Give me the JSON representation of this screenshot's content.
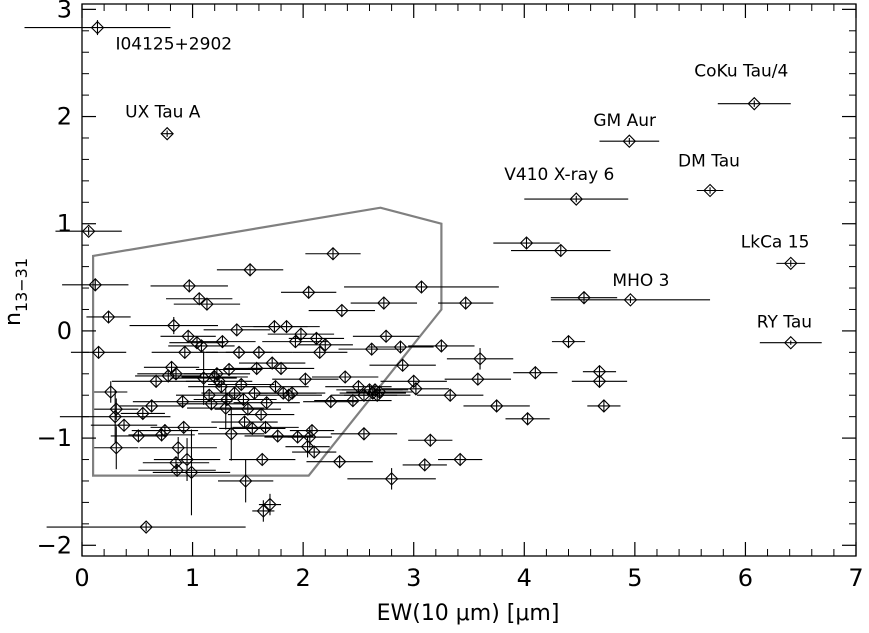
{
  "chart_data": {
    "type": "scatter",
    "title": "",
    "xlabel": "EW(10 μm) [μm]",
    "ylabel_main": "n",
    "ylabel_sub": "13−31",
    "xlim": [
      0,
      7
    ],
    "ylim": [
      -2.1,
      3.05
    ],
    "x_ticks": [
      0,
      1,
      2,
      3,
      4,
      5,
      6,
      7
    ],
    "x_tick_labels": [
      "0",
      "1",
      "2",
      "3",
      "4",
      "5",
      "6",
      "7"
    ],
    "y_ticks": [
      -2,
      -1,
      0,
      1,
      2,
      3
    ],
    "y_tick_labels": [
      "−2",
      "−1",
      "0",
      "1",
      "2",
      "3"
    ],
    "series": [
      {
        "name": "labeled",
        "points": [
          {
            "label": "I04125+2902",
            "x": 0.14,
            "y": 2.83,
            "xerr": 0.66,
            "yerr": 0.07
          },
          {
            "label": "UX Tau A",
            "x": 0.77,
            "y": 1.84,
            "xerr": 0.05,
            "yerr": 0.03
          },
          {
            "label": "CoKu Tau/4",
            "x": 6.08,
            "y": 2.12,
            "xerr": 0.33,
            "yerr": 0.03
          },
          {
            "label": "GM Aur",
            "x": 4.95,
            "y": 1.77,
            "xerr": 0.27,
            "yerr": 0.03
          },
          {
            "label": "V410 X-ray 6",
            "x": 4.47,
            "y": 1.23,
            "xerr": 0.47,
            "yerr": 0.03
          },
          {
            "label": "DM Tau",
            "x": 5.68,
            "y": 1.31,
            "xerr": 0.12,
            "yerr": 0.03
          },
          {
            "label": "LkCa 15",
            "x": 6.41,
            "y": 0.63,
            "xerr": 0.13,
            "yerr": 0.03
          },
          {
            "label": "MHO 3",
            "x": 4.96,
            "y": 0.29,
            "xerr": 0.72,
            "yerr": 0.03
          },
          {
            "label": "RY Tau",
            "x": 6.41,
            "y": -0.11,
            "xerr": 0.28,
            "yerr": 0.02
          }
        ]
      },
      {
        "name": "unlabeled",
        "points": [
          {
            "x": 0.06,
            "y": 0.93,
            "xerr": 0.3,
            "yerr": 0.04
          },
          {
            "x": 0.12,
            "y": 0.43,
            "xerr": 0.3,
            "yerr": 0.05
          },
          {
            "x": 0.24,
            "y": 0.13,
            "xerr": 0.2,
            "yerr": 0.05
          },
          {
            "x": 0.15,
            "y": -0.2,
            "xerr": 0.25,
            "yerr": 0.05
          },
          {
            "x": 0.26,
            "y": -0.57,
            "xerr": 0.15,
            "yerr": 0.1
          },
          {
            "x": 0.31,
            "y": -0.73,
            "xerr": 0.2,
            "yerr": 0.1
          },
          {
            "x": 0.3,
            "y": -0.8,
            "xerr": 0.5,
            "yerr": 0.25
          },
          {
            "x": 0.31,
            "y": -1.09,
            "xerr": 0.2,
            "yerr": 0.2
          },
          {
            "x": 0.58,
            "y": -1.83,
            "xerr": 0.9,
            "yerr": 0.04
          },
          {
            "x": 0.38,
            "y": -0.88,
            "xerr": 0.3,
            "yerr": 0.05
          },
          {
            "x": 0.51,
            "y": -0.98,
            "xerr": 0.25,
            "yerr": 0.05
          },
          {
            "x": 0.55,
            "y": -0.77,
            "xerr": 0.2,
            "yerr": 0.05
          },
          {
            "x": 0.63,
            "y": -0.7,
            "xerr": 0.3,
            "yerr": 0.05
          },
          {
            "x": 0.67,
            "y": -0.47,
            "xerr": 0.4,
            "yerr": 0.05
          },
          {
            "x": 0.72,
            "y": -0.97,
            "xerr": 0.3,
            "yerr": 0.06
          },
          {
            "x": 0.75,
            "y": -0.93,
            "xerr": 0.3,
            "yerr": 0.06
          },
          {
            "x": 0.78,
            "y": -0.42,
            "xerr": 0.3,
            "yerr": 0.05
          },
          {
            "x": 0.81,
            "y": -0.34,
            "xerr": 0.25,
            "yerr": 0.05
          },
          {
            "x": 0.83,
            "y": 0.05,
            "xerr": 0.4,
            "yerr": 0.08
          },
          {
            "x": 0.85,
            "y": -0.4,
            "xerr": 0.35,
            "yerr": 0.05
          },
          {
            "x": 0.87,
            "y": -1.09,
            "xerr": 0.35,
            "yerr": 0.1
          },
          {
            "x": 0.85,
            "y": -1.23,
            "xerr": 0.3,
            "yerr": 0.05
          },
          {
            "x": 0.86,
            "y": -1.3,
            "xerr": 0.35,
            "yerr": 0.05
          },
          {
            "x": 0.96,
            "y": -0.05,
            "xerr": 0.25,
            "yerr": 0.05
          },
          {
            "x": 0.93,
            "y": -0.2,
            "xerr": 0.3,
            "yerr": 0.05
          },
          {
            "x": 0.97,
            "y": 0.42,
            "xerr": 0.35,
            "yerr": 0.06
          },
          {
            "x": 0.91,
            "y": -0.66,
            "xerr": 0.45,
            "yerr": 0.05
          },
          {
            "x": 0.92,
            "y": -0.9,
            "xerr": 0.3,
            "yerr": 0.05
          },
          {
            "x": 0.95,
            "y": -1.2,
            "xerr": 0.3,
            "yerr": 0.2
          },
          {
            "x": 0.99,
            "y": -1.32,
            "xerr": 0.35,
            "yerr": 0.4
          },
          {
            "x": 1.04,
            "y": -0.11,
            "xerr": 0.25,
            "yerr": 0.05
          },
          {
            "x": 1.06,
            "y": 0.3,
            "xerr": 0.3,
            "yerr": 0.05
          },
          {
            "x": 1.08,
            "y": -0.14,
            "xerr": 0.3,
            "yerr": 0.05
          },
          {
            "x": 1.1,
            "y": -0.44,
            "xerr": 0.3,
            "yerr": 0.25
          },
          {
            "x": 1.13,
            "y": 0.25,
            "xerr": 0.3,
            "yerr": 0.05
          },
          {
            "x": 1.15,
            "y": -0.6,
            "xerr": 0.3,
            "yerr": 0.05
          },
          {
            "x": 1.17,
            "y": -0.68,
            "xerr": 0.3,
            "yerr": 0.05
          },
          {
            "x": 1.2,
            "y": -0.43,
            "xerr": 0.3,
            "yerr": 0.05
          },
          {
            "x": 1.22,
            "y": -0.4,
            "xerr": 0.3,
            "yerr": 0.05
          },
          {
            "x": 1.24,
            "y": -0.47,
            "xerr": 0.3,
            "yerr": 0.05
          },
          {
            "x": 1.26,
            "y": -0.52,
            "xerr": 0.3,
            "yerr": 0.05
          },
          {
            "x": 1.27,
            "y": -0.1,
            "xerr": 0.3,
            "yerr": 0.05
          },
          {
            "x": 1.3,
            "y": -0.72,
            "xerr": 0.35,
            "yerr": 0.2
          },
          {
            "x": 1.31,
            "y": -0.64,
            "xerr": 0.3,
            "yerr": 0.05
          },
          {
            "x": 1.33,
            "y": -0.36,
            "xerr": 0.3,
            "yerr": 0.05
          },
          {
            "x": 1.35,
            "y": -0.96,
            "xerr": 0.3,
            "yerr": 0.25
          },
          {
            "x": 1.38,
            "y": -0.58,
            "xerr": 0.3,
            "yerr": 0.05
          },
          {
            "x": 1.4,
            "y": 0.01,
            "xerr": 0.3,
            "yerr": 0.05
          },
          {
            "x": 1.42,
            "y": -0.2,
            "xerr": 0.3,
            "yerr": 0.05
          },
          {
            "x": 1.44,
            "y": -0.5,
            "xerr": 0.3,
            "yerr": 0.05
          },
          {
            "x": 1.46,
            "y": -0.64,
            "xerr": 0.3,
            "yerr": 0.05
          },
          {
            "x": 1.47,
            "y": -0.85,
            "xerr": 0.3,
            "yerr": 0.05
          },
          {
            "x": 1.48,
            "y": -1.4,
            "xerr": 0.25,
            "yerr": 0.2
          },
          {
            "x": 1.5,
            "y": -0.73,
            "xerr": 0.3,
            "yerr": 0.05
          },
          {
            "x": 1.52,
            "y": 0.57,
            "xerr": 0.3,
            "yerr": 0.05
          },
          {
            "x": 1.54,
            "y": -0.91,
            "xerr": 0.3,
            "yerr": 0.05
          },
          {
            "x": 1.56,
            "y": -0.58,
            "xerr": 0.3,
            "yerr": 0.05
          },
          {
            "x": 1.58,
            "y": -0.35,
            "xerr": 0.3,
            "yerr": 0.05
          },
          {
            "x": 1.6,
            "y": -0.2,
            "xerr": 0.3,
            "yerr": 0.05
          },
          {
            "x": 1.62,
            "y": -0.78,
            "xerr": 0.3,
            "yerr": 0.05
          },
          {
            "x": 1.63,
            "y": -1.2,
            "xerr": 0.3,
            "yerr": 0.05
          },
          {
            "x": 1.64,
            "y": -1.68,
            "xerr": 0.1,
            "yerr": 0.1
          },
          {
            "x": 1.66,
            "y": -0.9,
            "xerr": 0.3,
            "yerr": 0.05
          },
          {
            "x": 1.67,
            "y": -0.67,
            "xerr": 0.3,
            "yerr": 0.05
          },
          {
            "x": 1.7,
            "y": -1.62,
            "xerr": 0.1,
            "yerr": 0.1
          },
          {
            "x": 1.72,
            "y": -0.3,
            "xerr": 0.3,
            "yerr": 0.05
          },
          {
            "x": 1.74,
            "y": 0.04,
            "xerr": 0.3,
            "yerr": 0.05
          },
          {
            "x": 1.75,
            "y": -0.52,
            "xerr": 0.3,
            "yerr": 0.05
          },
          {
            "x": 1.77,
            "y": -0.98,
            "xerr": 0.3,
            "yerr": 0.05
          },
          {
            "x": 1.8,
            "y": -0.35,
            "xerr": 0.3,
            "yerr": 0.05
          },
          {
            "x": 1.82,
            "y": -0.58,
            "xerr": 0.3,
            "yerr": 0.05
          },
          {
            "x": 1.85,
            "y": 0.04,
            "xerr": 0.3,
            "yerr": 0.05
          },
          {
            "x": 1.87,
            "y": -0.6,
            "xerr": 0.3,
            "yerr": 0.05
          },
          {
            "x": 1.9,
            "y": -0.58,
            "xerr": 0.3,
            "yerr": 0.05
          },
          {
            "x": 1.93,
            "y": -0.1,
            "xerr": 0.3,
            "yerr": 0.05
          },
          {
            "x": 1.95,
            "y": -0.99,
            "xerr": 0.3,
            "yerr": 0.05
          },
          {
            "x": 1.98,
            "y": -0.03,
            "xerr": 0.3,
            "yerr": 0.05
          },
          {
            "x": 2.02,
            "y": -0.45,
            "xerr": 0.3,
            "yerr": 0.05
          },
          {
            "x": 2.04,
            "y": -1.08,
            "xerr": 0.2,
            "yerr": 0.1
          },
          {
            "x": 2.06,
            "y": -0.99,
            "xerr": 0.2,
            "yerr": 0.1
          },
          {
            "x": 2.08,
            "y": -0.93,
            "xerr": 0.2,
            "yerr": 0.05
          },
          {
            "x": 2.1,
            "y": -1.13,
            "xerr": 0.2,
            "yerr": 0.05
          },
          {
            "x": 2.05,
            "y": 0.36,
            "xerr": 0.25,
            "yerr": 0.05
          },
          {
            "x": 2.12,
            "y": -0.07,
            "xerr": 0.25,
            "yerr": 0.05
          },
          {
            "x": 2.15,
            "y": -0.2,
            "xerr": 0.25,
            "yerr": 0.05
          },
          {
            "x": 2.2,
            "y": -0.13,
            "xerr": 0.25,
            "yerr": 0.05
          },
          {
            "x": 2.25,
            "y": -0.66,
            "xerr": 0.25,
            "yerr": 0.05
          },
          {
            "x": 2.27,
            "y": 0.72,
            "xerr": 0.25,
            "yerr": 0.05
          },
          {
            "x": 2.33,
            "y": -1.22,
            "xerr": 0.3,
            "yerr": 0.05
          },
          {
            "x": 2.35,
            "y": 0.19,
            "xerr": 0.3,
            "yerr": 0.05
          },
          {
            "x": 2.38,
            "y": -0.43,
            "xerr": 0.3,
            "yerr": 0.05
          },
          {
            "x": 2.45,
            "y": -0.65,
            "xerr": 0.35,
            "yerr": 0.05
          },
          {
            "x": 2.5,
            "y": -0.52,
            "xerr": 0.3,
            "yerr": 0.05
          },
          {
            "x": 2.55,
            "y": -0.6,
            "xerr": 0.3,
            "yerr": 0.05
          },
          {
            "x": 2.6,
            "y": -0.55,
            "xerr": 0.3,
            "yerr": 0.05
          },
          {
            "x": 2.63,
            "y": -0.58,
            "xerr": 0.3,
            "yerr": 0.05
          },
          {
            "x": 2.65,
            "y": -0.55,
            "xerr": 0.3,
            "yerr": 0.05
          },
          {
            "x": 2.67,
            "y": -0.6,
            "xerr": 0.3,
            "yerr": 0.05
          },
          {
            "x": 2.69,
            "y": -0.57,
            "xerr": 0.3,
            "yerr": 0.05
          },
          {
            "x": 2.62,
            "y": -0.17,
            "xerr": 0.3,
            "yerr": 0.05
          },
          {
            "x": 2.55,
            "y": -0.96,
            "xerr": 0.3,
            "yerr": 0.05
          },
          {
            "x": 2.73,
            "y": 0.26,
            "xerr": 0.3,
            "yerr": 0.05
          },
          {
            "x": 2.75,
            "y": -0.05,
            "xerr": 0.3,
            "yerr": 0.05
          },
          {
            "x": 2.8,
            "y": -1.38,
            "xerr": 0.4,
            "yerr": 0.1
          },
          {
            "x": 2.88,
            "y": -0.15,
            "xerr": 0.3,
            "yerr": 0.05
          },
          {
            "x": 2.9,
            "y": -0.32,
            "xerr": 0.3,
            "yerr": 0.05
          },
          {
            "x": 3.0,
            "y": -0.47,
            "xerr": 0.3,
            "yerr": 0.05
          },
          {
            "x": 3.02,
            "y": -0.54,
            "xerr": 0.3,
            "yerr": 0.05
          },
          {
            "x": 3.07,
            "y": 0.41,
            "xerr": 0.7,
            "yerr": 0.05
          },
          {
            "x": 3.1,
            "y": -1.25,
            "xerr": 0.2,
            "yerr": 0.05
          },
          {
            "x": 3.15,
            "y": -1.02,
            "xerr": 0.2,
            "yerr": 0.05
          },
          {
            "x": 3.25,
            "y": -0.14,
            "xerr": 0.3,
            "yerr": 0.05
          },
          {
            "x": 3.33,
            "y": -0.6,
            "xerr": 0.3,
            "yerr": 0.05
          },
          {
            "x": 3.42,
            "y": -1.2,
            "xerr": 0.2,
            "yerr": 0.05
          },
          {
            "x": 3.47,
            "y": 0.26,
            "xerr": 0.25,
            "yerr": 0.05
          },
          {
            "x": 3.58,
            "y": -0.45,
            "xerr": 0.3,
            "yerr": 0.05
          },
          {
            "x": 3.6,
            "y": -0.26,
            "xerr": 0.3,
            "yerr": 0.1
          },
          {
            "x": 3.75,
            "y": -0.7,
            "xerr": 0.3,
            "yerr": 0.05
          },
          {
            "x": 4.02,
            "y": 0.82,
            "xerr": 0.3,
            "yerr": 0.05
          },
          {
            "x": 4.03,
            "y": -0.82,
            "xerr": 0.2,
            "yerr": 0.05
          },
          {
            "x": 4.1,
            "y": -0.39,
            "xerr": 0.2,
            "yerr": 0.05
          },
          {
            "x": 4.33,
            "y": 0.75,
            "xerr": 0.45,
            "yerr": 0.05
          },
          {
            "x": 4.4,
            "y": -0.1,
            "xerr": 0.15,
            "yerr": 0.05
          },
          {
            "x": 4.54,
            "y": 0.31,
            "xerr": 0.3,
            "yerr": 0.05
          },
          {
            "x": 4.68,
            "y": -0.38,
            "xerr": 0.15,
            "yerr": 0.05
          },
          {
            "x": 4.68,
            "y": -0.47,
            "xerr": 0.25,
            "yerr": 0.05
          },
          {
            "x": 4.72,
            "y": -0.7,
            "xerr": 0.15,
            "yerr": 0.05
          }
        ]
      }
    ],
    "region_outline": {
      "description": "grey outlined selection region",
      "color": "#808080",
      "vertices": [
        [
          0.1,
          0.7
        ],
        [
          2.7,
          1.15
        ],
        [
          3.25,
          1.0
        ],
        [
          3.25,
          0.2
        ],
        [
          2.05,
          -1.35
        ],
        [
          0.1,
          -1.35
        ]
      ]
    },
    "legend": "none",
    "grid": false
  }
}
